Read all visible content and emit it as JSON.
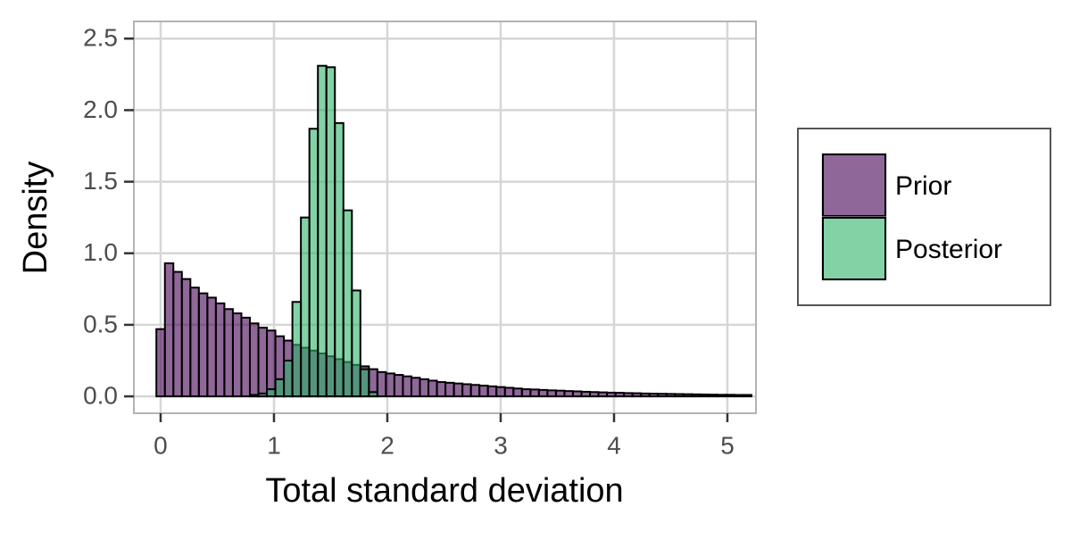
{
  "chart_data": {
    "type": "histogram",
    "xlabel": "Total standard deviation",
    "ylabel": "Density",
    "bins": [
      -0.0375,
      0.0375,
      0.1125,
      0.1875,
      0.2625,
      0.3375,
      0.4125,
      0.4875,
      0.5625,
      0.6375,
      0.7125,
      0.7875,
      0.8625,
      0.9375,
      1.0125,
      1.0875,
      1.1625,
      1.2375,
      1.3125,
      1.3875,
      1.4625,
      1.5375,
      1.6125,
      1.6875,
      1.7625,
      1.8375,
      1.9125,
      1.9875,
      2.0625,
      2.1375,
      2.2125,
      2.2875,
      2.3625,
      2.4375,
      2.5125,
      2.5875,
      2.6625,
      2.7375,
      2.8125,
      2.8875,
      2.9625,
      3.0375,
      3.1125,
      3.1875,
      3.2625,
      3.3375,
      3.4125,
      3.4875,
      3.5625,
      3.6375,
      3.7125,
      3.7875,
      3.8625,
      3.9375,
      4.0125,
      4.0875,
      4.1625,
      4.2375,
      4.3125,
      4.3875,
      4.4625,
      4.5375,
      4.6125,
      4.6875,
      4.7625,
      4.8375,
      4.9125,
      4.9875,
      5.0625,
      5.1375,
      5.2125
    ],
    "series": [
      {
        "name": "Prior",
        "color": "#440154",
        "values": [
          0.47,
          0.93,
          0.87,
          0.82,
          0.76,
          0.72,
          0.69,
          0.65,
          0.61,
          0.58,
          0.55,
          0.51,
          0.48,
          0.46,
          0.42,
          0.39,
          0.36,
          0.34,
          0.32,
          0.3,
          0.28,
          0.26,
          0.24,
          0.22,
          0.21,
          0.19,
          0.17,
          0.16,
          0.15,
          0.14,
          0.13,
          0.12,
          0.11,
          0.1,
          0.095,
          0.09,
          0.085,
          0.08,
          0.075,
          0.07,
          0.065,
          0.06,
          0.055,
          0.05,
          0.048,
          0.045,
          0.042,
          0.04,
          0.037,
          0.035,
          0.032,
          0.03,
          0.028,
          0.026,
          0.025,
          0.023,
          0.022,
          0.02,
          0.019,
          0.018,
          0.017,
          0.016,
          0.015,
          0.014,
          0.013,
          0.012,
          0.011,
          0.011,
          0.01,
          0.01
        ]
      },
      {
        "name": "Posterior",
        "color": "#2fb46b",
        "values": [
          0,
          0,
          0,
          0,
          0,
          0,
          0,
          0,
          0,
          0,
          0,
          0.01,
          0.02,
          0.05,
          0.12,
          0.25,
          0.66,
          1.25,
          1.87,
          2.31,
          2.3,
          1.91,
          1.3,
          0.74,
          0.19,
          0.03,
          0,
          0,
          0,
          0,
          0,
          0,
          0,
          0,
          0,
          0,
          0,
          0,
          0,
          0,
          0,
          0,
          0,
          0,
          0,
          0,
          0,
          0,
          0,
          0,
          0,
          0,
          0,
          0,
          0,
          0,
          0,
          0,
          0,
          0,
          0,
          0,
          0,
          0,
          0,
          0,
          0,
          0,
          0,
          0
        ]
      }
    ],
    "alpha": 0.6,
    "xlim": [
      -0.236,
      5.252
    ],
    "ylim": [
      -0.118,
      2.62
    ],
    "xticks": [
      0,
      1,
      2,
      3,
      4,
      5
    ],
    "yticks": [
      {
        "value": 0,
        "label": "0.0"
      },
      {
        "value": 0.5,
        "label": "0.5"
      },
      {
        "value": 1,
        "label": "1.0"
      },
      {
        "value": 1.5,
        "label": "1.5"
      },
      {
        "value": 2,
        "label": "2.0"
      },
      {
        "value": 2.5,
        "label": "2.5"
      }
    ],
    "grid": true,
    "legend": "right"
  }
}
